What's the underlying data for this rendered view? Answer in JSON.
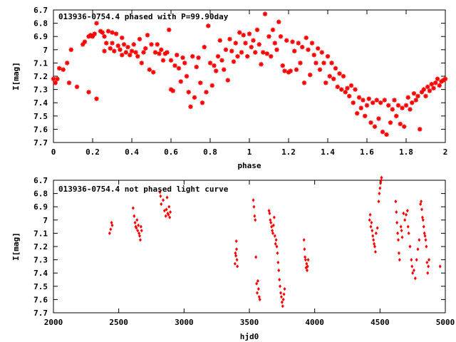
{
  "chart_data": [
    {
      "type": "scatter",
      "title": "013936-0754.4 phased with P=99.90day",
      "xlabel": "phase",
      "ylabel": "I[mag]",
      "xlim": [
        0,
        2
      ],
      "ylim": [
        6.7,
        7.7
      ],
      "y_inverted": true,
      "xticks": [
        "0",
        "0.2",
        "0.4",
        "0.6",
        "0.8",
        "1",
        "1.2",
        "1.4",
        "1.6",
        "1.8",
        "2"
      ],
      "yticks": [
        "6.7",
        "6.8",
        "6.9",
        "7",
        "7.1",
        "7.2",
        "7.3",
        "7.4",
        "7.5",
        "7.6",
        "7.7"
      ],
      "grid": false,
      "marker": "star",
      "color": "#ff0000",
      "points": [
        [
          0.0,
          7.22
        ],
        [
          0.01,
          7.25
        ],
        [
          0.02,
          7.22
        ],
        [
          0.03,
          7.14
        ],
        [
          0.05,
          7.15
        ],
        [
          0.07,
          7.1
        ],
        [
          0.08,
          7.25
        ],
        [
          0.09,
          7.0
        ],
        [
          0.12,
          7.28
        ],
        [
          0.15,
          6.96
        ],
        [
          0.16,
          6.94
        ],
        [
          0.18,
          6.9
        ],
        [
          0.18,
          7.32
        ],
        [
          0.19,
          6.89
        ],
        [
          0.2,
          6.9
        ],
        [
          0.21,
          6.88
        ],
        [
          0.22,
          6.8
        ],
        [
          0.22,
          7.37
        ],
        [
          0.24,
          6.86
        ],
        [
          0.25,
          6.87
        ],
        [
          0.26,
          7.01
        ],
        [
          0.26,
          6.9
        ],
        [
          0.27,
          6.95
        ],
        [
          0.28,
          6.86
        ],
        [
          0.29,
          6.99
        ],
        [
          0.3,
          6.87
        ],
        [
          0.3,
          6.95
        ],
        [
          0.31,
          7.01
        ],
        [
          0.32,
          6.88
        ],
        [
          0.33,
          6.97
        ],
        [
          0.34,
          7.0
        ],
        [
          0.35,
          6.91
        ],
        [
          0.35,
          7.04
        ],
        [
          0.36,
          6.96
        ],
        [
          0.37,
          7.02
        ],
        [
          0.38,
          6.98
        ],
        [
          0.39,
          7.04
        ],
        [
          0.4,
          7.01
        ],
        [
          0.41,
          6.96
        ],
        [
          0.42,
          7.02
        ],
        [
          0.43,
          7.05
        ],
        [
          0.44,
          6.92
        ],
        [
          0.45,
          7.1
        ],
        [
          0.46,
          7.02
        ],
        [
          0.47,
          6.99
        ],
        [
          0.48,
          6.89
        ],
        [
          0.49,
          7.15
        ],
        [
          0.5,
          6.96
        ],
        [
          0.51,
          7.17
        ],
        [
          0.52,
          7.02
        ],
        [
          0.53,
          6.96
        ],
        [
          0.54,
          7.03
        ],
        [
          0.55,
          7.0
        ],
        [
          0.56,
          7.08
        ],
        [
          0.57,
          7.03
        ],
        [
          0.58,
          7.02
        ],
        [
          0.59,
          6.85
        ],
        [
          0.6,
          7.08
        ],
        [
          0.6,
          7.3
        ],
        [
          0.61,
          7.31
        ],
        [
          0.62,
          7.12
        ],
        [
          0.63,
          7.04
        ],
        [
          0.64,
          7.14
        ],
        [
          0.65,
          7.24
        ],
        [
          0.66,
          7.06
        ],
        [
          0.67,
          7.1
        ],
        [
          0.68,
          7.2
        ],
        [
          0.69,
          7.32
        ],
        [
          0.7,
          7.43
        ],
        [
          0.71,
          7.05
        ],
        [
          0.72,
          7.36
        ],
        [
          0.73,
          7.13
        ],
        [
          0.74,
          7.06
        ],
        [
          0.75,
          7.25
        ],
        [
          0.76,
          7.4
        ],
        [
          0.77,
          6.98
        ],
        [
          0.78,
          7.32
        ],
        [
          0.79,
          6.82
        ],
        [
          0.8,
          7.1
        ],
        [
          0.81,
          7.27
        ],
        [
          0.82,
          7.12
        ],
        [
          0.83,
          7.16
        ],
        [
          0.84,
          7.05
        ],
        [
          0.85,
          6.93
        ],
        [
          0.86,
          7.08
        ],
        [
          0.87,
          7.15
        ],
        [
          0.88,
          7.0
        ],
        [
          0.89,
          7.23
        ],
        [
          0.9,
          6.92
        ],
        [
          0.91,
          7.01
        ],
        [
          0.92,
          7.09
        ],
        [
          0.93,
          6.95
        ],
        [
          0.94,
          7.05
        ],
        [
          0.95,
          6.87
        ],
        [
          0.96,
          7.02
        ],
        [
          0.97,
          6.89
        ],
        [
          0.98,
          6.95
        ],
        [
          0.99,
          7.05
        ],
        [
          1.0,
          6.88
        ],
        [
          1.01,
          6.98
        ],
        [
          1.02,
          6.93
        ],
        [
          1.03,
          7.02
        ],
        [
          1.04,
          6.85
        ],
        [
          1.05,
          6.96
        ],
        [
          1.06,
          7.11
        ],
        [
          1.07,
          7.02
        ],
        [
          1.08,
          6.73
        ],
        [
          1.09,
          7.03
        ],
        [
          1.1,
          6.9
        ],
        [
          1.11,
          7.05
        ],
        [
          1.12,
          6.85
        ],
        [
          1.13,
          6.95
        ],
        [
          1.14,
          7.0
        ],
        [
          1.15,
          6.79
        ],
        [
          1.16,
          6.9
        ],
        [
          1.17,
          7.12
        ],
        [
          1.18,
          7.16
        ],
        [
          1.19,
          6.93
        ],
        [
          1.2,
          7.17
        ],
        [
          1.21,
          7.16
        ],
        [
          1.22,
          6.94
        ],
        [
          1.23,
          7.01
        ],
        [
          1.24,
          7.15
        ],
        [
          1.25,
          6.95
        ],
        [
          1.26,
          7.1
        ],
        [
          1.27,
          6.98
        ],
        [
          1.28,
          7.25
        ],
        [
          1.29,
          6.91
        ],
        [
          1.3,
          7.0
        ],
        [
          1.31,
          7.19
        ],
        [
          1.32,
          6.95
        ],
        [
          1.33,
          7.04
        ],
        [
          1.34,
          7.1
        ],
        [
          1.35,
          6.99
        ],
        [
          1.36,
          7.15
        ],
        [
          1.37,
          7.02
        ],
        [
          1.38,
          7.1
        ],
        [
          1.39,
          7.25
        ],
        [
          1.4,
          7.05
        ],
        [
          1.41,
          7.2
        ],
        [
          1.42,
          7.1
        ],
        [
          1.43,
          7.22
        ],
        [
          1.44,
          7.14
        ],
        [
          1.45,
          7.28
        ],
        [
          1.46,
          7.18
        ],
        [
          1.47,
          7.3
        ],
        [
          1.48,
          7.2
        ],
        [
          1.49,
          7.32
        ],
        [
          1.5,
          7.29
        ],
        [
          1.51,
          7.35
        ],
        [
          1.52,
          7.27
        ],
        [
          1.53,
          7.4
        ],
        [
          1.54,
          7.3
        ],
        [
          1.55,
          7.48
        ],
        [
          1.56,
          7.36
        ],
        [
          1.57,
          7.44
        ],
        [
          1.58,
          7.38
        ],
        [
          1.59,
          7.5
        ],
        [
          1.6,
          7.42
        ],
        [
          1.61,
          7.37
        ],
        [
          1.62,
          7.55
        ],
        [
          1.63,
          7.4
        ],
        [
          1.64,
          7.58
        ],
        [
          1.65,
          7.38
        ],
        [
          1.66,
          7.52
        ],
        [
          1.67,
          7.4
        ],
        [
          1.68,
          7.62
        ],
        [
          1.69,
          7.38
        ],
        [
          1.7,
          7.64
        ],
        [
          1.71,
          7.42
        ],
        [
          1.72,
          7.55
        ],
        [
          1.73,
          7.45
        ],
        [
          1.74,
          7.38
        ],
        [
          1.75,
          7.5
        ],
        [
          1.76,
          7.42
        ],
        [
          1.77,
          7.56
        ],
        [
          1.78,
          7.44
        ],
        [
          1.79,
          7.58
        ],
        [
          1.8,
          7.42
        ],
        [
          1.81,
          7.36
        ],
        [
          1.82,
          7.45
        ],
        [
          1.83,
          7.4
        ],
        [
          1.84,
          7.33
        ],
        [
          1.85,
          7.38
        ],
        [
          1.86,
          7.35
        ],
        [
          1.87,
          7.6
        ],
        [
          1.88,
          7.32
        ],
        [
          1.89,
          7.3
        ],
        [
          1.9,
          7.35
        ],
        [
          1.91,
          7.28
        ],
        [
          1.92,
          7.31
        ],
        [
          1.93,
          7.26
        ],
        [
          1.94,
          7.29
        ],
        [
          1.95,
          7.25
        ],
        [
          1.96,
          7.22
        ],
        [
          1.97,
          7.27
        ],
        [
          1.98,
          7.24
        ],
        [
          1.99,
          7.23
        ],
        [
          2.0,
          7.22
        ]
      ]
    },
    {
      "type": "scatter",
      "title": "013936-0754.4 not phased light curve",
      "xlabel": "hjd0",
      "ylabel": "I[mag]",
      "xlim": [
        2000,
        5000
      ],
      "ylim": [
        6.7,
        7.7
      ],
      "y_inverted": true,
      "xticks": [
        "2000",
        "2500",
        "3000",
        "3500",
        "4000",
        "4500",
        "5000"
      ],
      "yticks": [
        "6.7",
        "6.8",
        "6.9",
        "7",
        "7.1",
        "7.2",
        "7.3",
        "7.4",
        "7.5",
        "7.6",
        "7.7"
      ],
      "grid": false,
      "marker": "diamond",
      "color": "#ff0000",
      "points": [
        [
          2430,
          7.1
        ],
        [
          2438,
          7.07
        ],
        [
          2445,
          7.02
        ],
        [
          2450,
          7.04
        ],
        [
          2610,
          6.91
        ],
        [
          2618,
          6.97
        ],
        [
          2625,
          7.02
        ],
        [
          2630,
          7.05
        ],
        [
          2635,
          7.06
        ],
        [
          2640,
          7.0
        ],
        [
          2645,
          7.08
        ],
        [
          2650,
          7.04
        ],
        [
          2655,
          7.1
        ],
        [
          2660,
          7.12
        ],
        [
          2665,
          7.15
        ],
        [
          2670,
          7.05
        ],
        [
          2675,
          7.08
        ],
        [
          2815,
          6.79
        ],
        [
          2820,
          6.82
        ],
        [
          2825,
          6.88
        ],
        [
          2840,
          6.85
        ],
        [
          2850,
          6.93
        ],
        [
          2860,
          6.97
        ],
        [
          2865,
          6.92
        ],
        [
          2870,
          6.83
        ],
        [
          2875,
          6.95
        ],
        [
          2880,
          6.96
        ],
        [
          2885,
          6.9
        ],
        [
          2890,
          6.98
        ],
        [
          2895,
          6.94
        ],
        [
          3390,
          7.33
        ],
        [
          3393,
          7.25
        ],
        [
          3397,
          7.27
        ],
        [
          3400,
          7.16
        ],
        [
          3402,
          7.22
        ],
        [
          3405,
          7.3
        ],
        [
          3408,
          7.35
        ],
        [
          3530,
          6.85
        ],
        [
          3535,
          6.9
        ],
        [
          3540,
          6.97
        ],
        [
          3545,
          7.0
        ],
        [
          3550,
          7.28
        ],
        [
          3555,
          7.48
        ],
        [
          3560,
          7.55
        ],
        [
          3565,
          7.46
        ],
        [
          3570,
          7.52
        ],
        [
          3575,
          7.58
        ],
        [
          3580,
          7.6
        ],
        [
          3650,
          6.93
        ],
        [
          3655,
          6.95
        ],
        [
          3660,
          7.0
        ],
        [
          3665,
          7.02
        ],
        [
          3670,
          7.05
        ],
        [
          3675,
          7.08
        ],
        [
          3680,
          7.1
        ],
        [
          3685,
          7.04
        ],
        [
          3690,
          6.98
        ],
        [
          3695,
          7.12
        ],
        [
          3700,
          7.18
        ],
        [
          3705,
          7.15
        ],
        [
          3710,
          7.2
        ],
        [
          3715,
          7.25
        ],
        [
          3720,
          7.32
        ],
        [
          3725,
          7.38
        ],
        [
          3730,
          7.45
        ],
        [
          3735,
          7.5
        ],
        [
          3740,
          7.55
        ],
        [
          3745,
          7.58
        ],
        [
          3750,
          7.62
        ],
        [
          3755,
          7.65
        ],
        [
          3760,
          7.6
        ],
        [
          3765,
          7.56
        ],
        [
          3770,
          7.52
        ],
        [
          3918,
          7.15
        ],
        [
          3922,
          7.22
        ],
        [
          3926,
          7.28
        ],
        [
          3930,
          7.3
        ],
        [
          3934,
          7.36
        ],
        [
          3938,
          7.33
        ],
        [
          3942,
          7.38
        ],
        [
          3946,
          7.35
        ],
        [
          3950,
          7.3
        ],
        [
          4420,
          7.0
        ],
        [
          4425,
          6.96
        ],
        [
          4430,
          7.05
        ],
        [
          4435,
          7.02
        ],
        [
          4440,
          7.08
        ],
        [
          4445,
          7.12
        ],
        [
          4450,
          7.15
        ],
        [
          4455,
          7.18
        ],
        [
          4460,
          7.2
        ],
        [
          4465,
          7.24
        ],
        [
          4470,
          7.1
        ],
        [
          4480,
          7.06
        ],
        [
          4490,
          6.86
        ],
        [
          4495,
          6.8
        ],
        [
          4500,
          6.76
        ],
        [
          4505,
          6.72
        ],
        [
          4510,
          6.7
        ],
        [
          4512,
          6.68
        ],
        [
          4620,
          6.86
        ],
        [
          4625,
          6.94
        ],
        [
          4630,
          7.02
        ],
        [
          4635,
          7.1
        ],
        [
          4640,
          7.15
        ],
        [
          4645,
          7.25
        ],
        [
          4650,
          7.3
        ],
        [
          4660,
          7.05
        ],
        [
          4665,
          7.08
        ],
        [
          4670,
          7.13
        ],
        [
          4680,
          6.95
        ],
        [
          4690,
          7.0
        ],
        [
          4700,
          6.96
        ],
        [
          4710,
          6.93
        ],
        [
          4715,
          7.05
        ],
        [
          4720,
          7.1
        ],
        [
          4730,
          7.2
        ],
        [
          4740,
          7.3
        ],
        [
          4745,
          7.35
        ],
        [
          4750,
          7.4
        ],
        [
          4760,
          7.38
        ],
        [
          4770,
          7.44
        ],
        [
          4780,
          7.3
        ],
        [
          4790,
          7.22
        ],
        [
          4800,
          7.15
        ],
        [
          4810,
          6.88
        ],
        [
          4815,
          6.86
        ],
        [
          4820,
          6.92
        ],
        [
          4825,
          6.98
        ],
        [
          4830,
          7.0
        ],
        [
          4835,
          7.05
        ],
        [
          4840,
          7.1
        ],
        [
          4845,
          7.12
        ],
        [
          4850,
          7.15
        ],
        [
          4855,
          7.2
        ],
        [
          4860,
          7.32
        ],
        [
          4865,
          7.4
        ],
        [
          4870,
          7.35
        ],
        [
          4875,
          7.3
        ],
        [
          4960,
          7.35
        ]
      ]
    }
  ]
}
